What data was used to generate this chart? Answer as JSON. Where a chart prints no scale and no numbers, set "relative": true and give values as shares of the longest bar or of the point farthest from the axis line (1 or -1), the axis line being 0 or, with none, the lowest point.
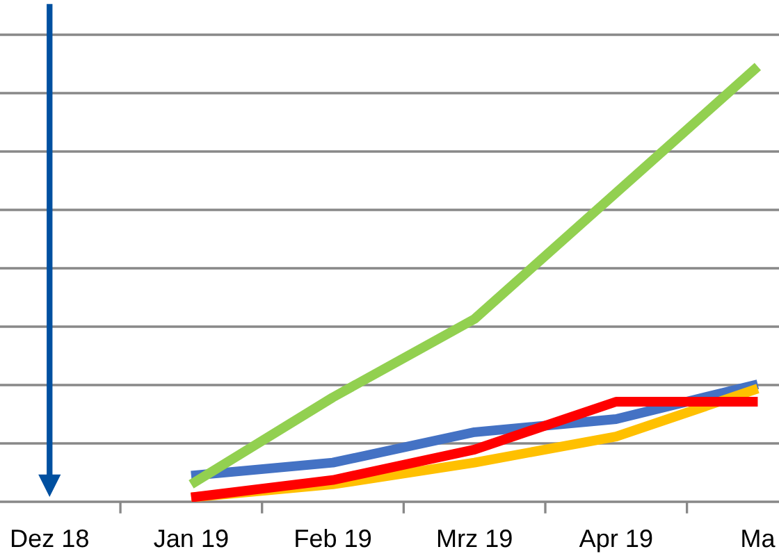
{
  "chart_data": {
    "type": "line",
    "relative": true,
    "grid": "y",
    "line_style": "solid",
    "marker": "none",
    "ref_lines": [
      {
        "axis": "x",
        "value": "Dez 18",
        "color": "#0050a0"
      }
    ],
    "categories": [
      "Dez 18",
      "Jan 19",
      "Feb 19",
      "Mrz 19",
      "Apr 19",
      "Ma"
    ],
    "series": [
      {
        "color": "#4472c4",
        "values": [
          null,
          0.06,
          0.09,
          0.16,
          0.19,
          0.27
        ]
      },
      {
        "color": "#ffc000",
        "values": [
          null,
          0.01,
          0.04,
          0.09,
          0.15,
          0.26
        ]
      },
      {
        "color": "#92d050",
        "values": [
          null,
          0.04,
          0.24,
          0.42,
          0.71,
          1
        ]
      },
      {
        "color": "#ff0000",
        "values": [
          null,
          0.01,
          0.05,
          0.12,
          0.23,
          0.23
        ]
      }
    ]
  }
}
